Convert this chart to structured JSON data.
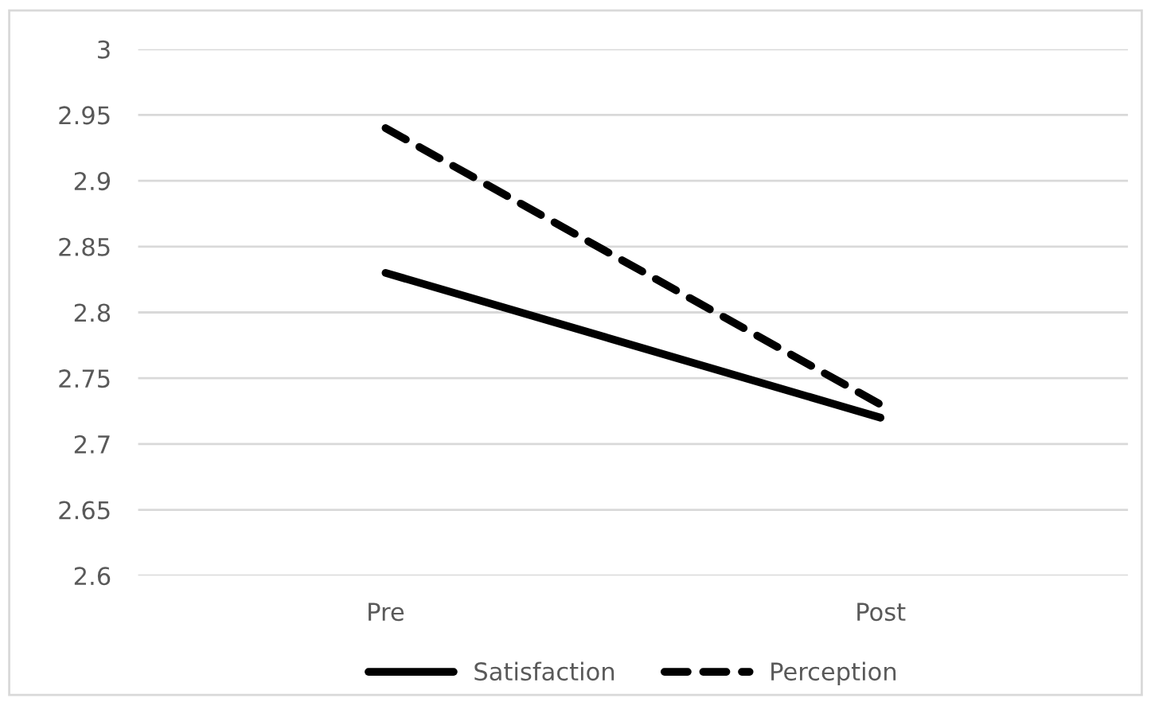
{
  "chart_data": {
    "type": "line",
    "categories": [
      "Pre",
      "Post"
    ],
    "series": [
      {
        "name": "Satisfaction",
        "color": "#000000",
        "values": [
          2.83,
          2.72
        ],
        "line_style": "solid"
      },
      {
        "name": "Perception",
        "color": "#000000",
        "values": [
          2.94,
          2.73
        ],
        "line_style": "dashed"
      }
    ],
    "ylim": [
      2.6,
      3
    ],
    "yticks": [
      2.6,
      2.65,
      2.7,
      2.75,
      2.8,
      2.85,
      2.9,
      2.95,
      3
    ],
    "grid": "y",
    "legend": "bottom",
    "marker": "none"
  }
}
